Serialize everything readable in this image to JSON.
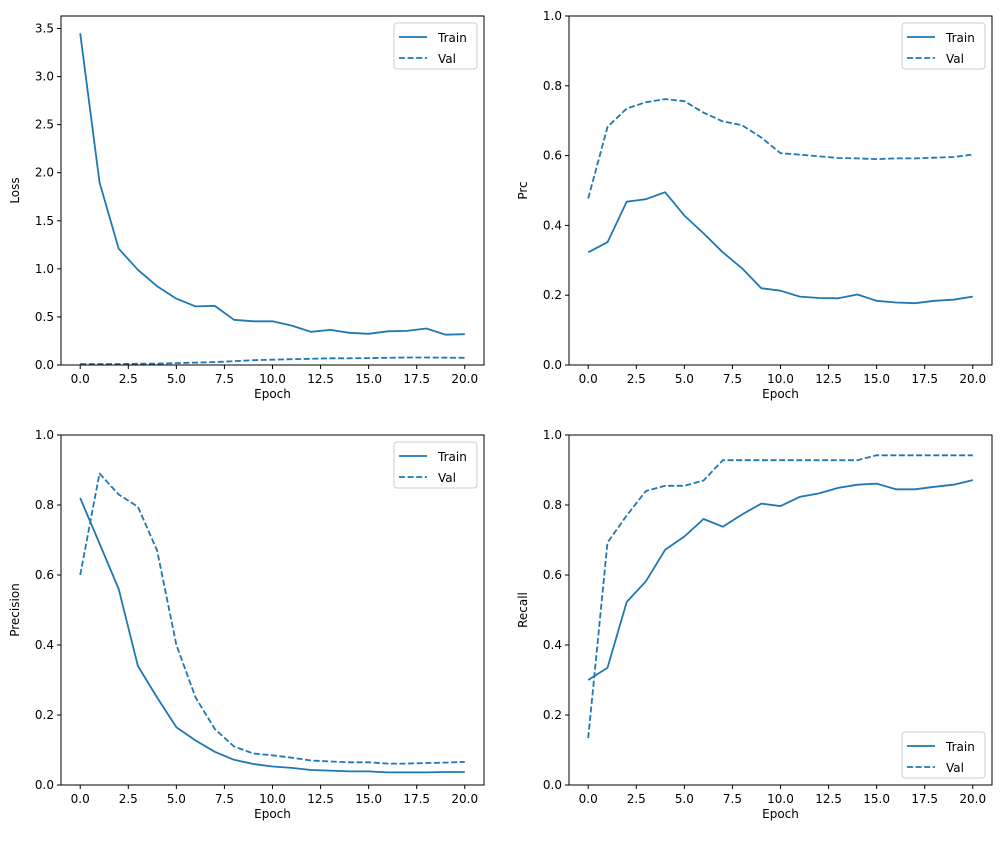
{
  "colors": {
    "line": "#1f77b4",
    "axes": "#000000",
    "legend_border": "#cccccc"
  },
  "chart_data": [
    {
      "type": "line",
      "xlabel": "Epoch",
      "ylabel": "Loss",
      "xlim": [
        -1,
        21
      ],
      "ylim": [
        0,
        3.63
      ],
      "xticks": [
        "0.0",
        "2.5",
        "5.0",
        "7.5",
        "10.0",
        "12.5",
        "15.0",
        "17.5",
        "20.0"
      ],
      "yticks": [
        "0.0",
        "0.5",
        "1.0",
        "1.5",
        "2.0",
        "2.5",
        "3.0",
        "3.5"
      ],
      "legend": "upper right",
      "grid": false,
      "x": [
        0,
        1,
        2,
        3,
        4,
        5,
        6,
        7,
        8,
        9,
        10,
        11,
        12,
        13,
        14,
        15,
        16,
        17,
        18,
        19,
        20
      ],
      "series": [
        {
          "name": "Train",
          "style": "solid",
          "values": [
            3.45,
            1.9,
            1.21,
            0.99,
            0.82,
            0.69,
            0.61,
            0.615,
            0.47,
            0.455,
            0.455,
            0.41,
            0.345,
            0.365,
            0.335,
            0.325,
            0.35,
            0.355,
            0.38,
            0.315,
            0.32
          ]
        },
        {
          "name": "Val",
          "style": "dashed",
          "values": [
            0.01,
            0.01,
            0.01,
            0.012,
            0.015,
            0.02,
            0.025,
            0.03,
            0.04,
            0.05,
            0.055,
            0.06,
            0.065,
            0.07,
            0.07,
            0.072,
            0.075,
            0.078,
            0.078,
            0.076,
            0.075
          ]
        }
      ]
    },
    {
      "type": "line",
      "xlabel": "Epoch",
      "ylabel": "Prc",
      "xlim": [
        -1,
        21
      ],
      "ylim": [
        0,
        1
      ],
      "xticks": [
        "0.0",
        "2.5",
        "5.0",
        "7.5",
        "10.0",
        "12.5",
        "15.0",
        "17.5",
        "20.0"
      ],
      "yticks": [
        "0.0",
        "0.2",
        "0.4",
        "0.6",
        "0.8",
        "1.0"
      ],
      "legend": "upper right",
      "grid": false,
      "x": [
        0,
        1,
        2,
        3,
        4,
        5,
        6,
        7,
        8,
        9,
        10,
        11,
        12,
        13,
        14,
        15,
        16,
        17,
        18,
        19,
        20
      ],
      "series": [
        {
          "name": "Train",
          "style": "solid",
          "values": [
            0.323,
            0.352,
            0.468,
            0.475,
            0.495,
            0.428,
            0.377,
            0.323,
            0.277,
            0.22,
            0.213,
            0.196,
            0.192,
            0.191,
            0.202,
            0.184,
            0.179,
            0.177,
            0.184,
            0.187,
            0.196
          ]
        },
        {
          "name": "Val",
          "style": "dashed",
          "values": [
            0.477,
            0.682,
            0.735,
            0.753,
            0.762,
            0.756,
            0.723,
            0.698,
            0.687,
            0.652,
            0.607,
            0.603,
            0.598,
            0.593,
            0.592,
            0.59,
            0.592,
            0.592,
            0.594,
            0.596,
            0.603
          ]
        }
      ]
    },
    {
      "type": "line",
      "xlabel": "Epoch",
      "ylabel": "Precision",
      "xlim": [
        -1,
        21
      ],
      "ylim": [
        0,
        1
      ],
      "xticks": [
        "0.0",
        "2.5",
        "5.0",
        "7.5",
        "10.0",
        "12.5",
        "15.0",
        "17.5",
        "20.0"
      ],
      "yticks": [
        "0.0",
        "0.2",
        "0.4",
        "0.6",
        "0.8",
        "1.0"
      ],
      "legend": "upper right",
      "grid": false,
      "x": [
        0,
        1,
        2,
        3,
        4,
        5,
        6,
        7,
        8,
        9,
        10,
        11,
        12,
        13,
        14,
        15,
        16,
        17,
        18,
        19,
        20
      ],
      "series": [
        {
          "name": "Train",
          "style": "solid",
          "values": [
            0.82,
            0.69,
            0.56,
            0.34,
            0.25,
            0.165,
            0.127,
            0.095,
            0.072,
            0.06,
            0.053,
            0.049,
            0.043,
            0.041,
            0.039,
            0.039,
            0.036,
            0.036,
            0.036,
            0.037,
            0.037
          ]
        },
        {
          "name": "Val",
          "style": "dashed",
          "values": [
            0.6,
            0.89,
            0.83,
            0.795,
            0.67,
            0.4,
            0.25,
            0.16,
            0.11,
            0.09,
            0.085,
            0.078,
            0.07,
            0.067,
            0.065,
            0.065,
            0.061,
            0.061,
            0.063,
            0.064,
            0.066
          ]
        }
      ]
    },
    {
      "type": "line",
      "xlabel": "Epoch",
      "ylabel": "Recall",
      "xlim": [
        -1,
        21
      ],
      "ylim": [
        0,
        1
      ],
      "xticks": [
        "0.0",
        "2.5",
        "5.0",
        "7.5",
        "10.0",
        "12.5",
        "15.0",
        "17.5",
        "20.0"
      ],
      "yticks": [
        "0.0",
        "0.2",
        "0.4",
        "0.6",
        "0.8",
        "1.0"
      ],
      "legend": "lower right",
      "grid": false,
      "x": [
        0,
        1,
        2,
        3,
        4,
        5,
        6,
        7,
        8,
        9,
        10,
        11,
        12,
        13,
        14,
        15,
        16,
        17,
        18,
        19,
        20
      ],
      "series": [
        {
          "name": "Train",
          "style": "solid",
          "values": [
            0.3,
            0.335,
            0.523,
            0.582,
            0.672,
            0.71,
            0.76,
            0.738,
            0.773,
            0.804,
            0.797,
            0.823,
            0.833,
            0.849,
            0.858,
            0.861,
            0.845,
            0.845,
            0.852,
            0.858,
            0.871
          ]
        },
        {
          "name": "Val",
          "style": "dashed",
          "values": [
            0.134,
            0.693,
            0.77,
            0.84,
            0.855,
            0.855,
            0.87,
            0.928,
            0.928,
            0.928,
            0.928,
            0.928,
            0.928,
            0.928,
            0.928,
            0.942,
            0.942,
            0.942,
            0.942,
            0.942,
            0.942
          ]
        }
      ]
    }
  ]
}
